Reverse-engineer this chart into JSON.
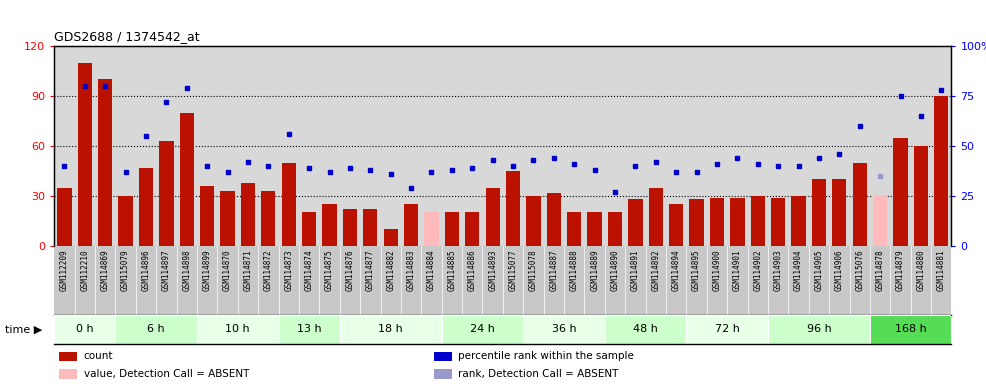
{
  "title": "GDS2688 / 1374542_at",
  "samples": [
    "GSM112209",
    "GSM112210",
    "GSM114869",
    "GSM115079",
    "GSM114896",
    "GSM114897",
    "GSM114898",
    "GSM114899",
    "GSM114870",
    "GSM114871",
    "GSM114872",
    "GSM114873",
    "GSM114874",
    "GSM114875",
    "GSM114876",
    "GSM114877",
    "GSM114882",
    "GSM114883",
    "GSM114884",
    "GSM114885",
    "GSM114886",
    "GSM114893",
    "GSM115077",
    "GSM115078",
    "GSM114887",
    "GSM114888",
    "GSM114889",
    "GSM114890",
    "GSM114891",
    "GSM114892",
    "GSM114894",
    "GSM114895",
    "GSM114900",
    "GSM114901",
    "GSM114902",
    "GSM114903",
    "GSM114904",
    "GSM114905",
    "GSM114906",
    "GSM115076",
    "GSM114878",
    "GSM114879",
    "GSM114880",
    "GSM114881"
  ],
  "red_values": [
    35,
    110,
    100,
    30,
    47,
    63,
    80,
    36,
    33,
    38,
    33,
    50,
    20,
    25,
    22,
    22,
    10,
    25,
    20,
    20,
    20,
    35,
    45,
    30,
    32,
    20,
    20,
    20,
    28,
    35,
    25,
    28,
    29,
    29,
    30,
    29,
    30,
    40,
    40,
    50,
    30,
    65,
    60,
    90
  ],
  "blue_values": [
    40,
    80,
    80,
    37,
    55,
    72,
    79,
    40,
    37,
    42,
    40,
    56,
    39,
    37,
    39,
    38,
    36,
    29,
    37,
    38,
    39,
    43,
    40,
    43,
    44,
    41,
    38,
    27,
    40,
    42,
    37,
    37,
    41,
    44,
    41,
    40,
    40,
    44,
    46,
    60,
    35,
    75,
    65,
    78
  ],
  "absent_red": [
    false,
    false,
    false,
    false,
    false,
    false,
    false,
    false,
    false,
    false,
    false,
    false,
    false,
    false,
    false,
    false,
    false,
    false,
    true,
    false,
    false,
    false,
    false,
    false,
    false,
    false,
    false,
    false,
    false,
    false,
    false,
    false,
    false,
    false,
    false,
    false,
    false,
    false,
    false,
    false,
    true,
    false,
    false,
    false
  ],
  "absent_blue": [
    false,
    false,
    false,
    false,
    false,
    false,
    false,
    false,
    false,
    false,
    false,
    false,
    false,
    false,
    false,
    false,
    false,
    false,
    false,
    false,
    false,
    false,
    false,
    false,
    false,
    false,
    false,
    false,
    false,
    false,
    false,
    false,
    false,
    false,
    false,
    false,
    false,
    false,
    false,
    false,
    true,
    false,
    false,
    false
  ],
  "time_groups": [
    {
      "label": "0 h",
      "start": 0,
      "end": 2,
      "color": "#E8FFE8"
    },
    {
      "label": "6 h",
      "start": 3,
      "end": 6,
      "color": "#CCFFCC"
    },
    {
      "label": "10 h",
      "start": 7,
      "end": 10,
      "color": "#E8FFE8"
    },
    {
      "label": "13 h",
      "start": 11,
      "end": 13,
      "color": "#CCFFCC"
    },
    {
      "label": "18 h",
      "start": 14,
      "end": 18,
      "color": "#E8FFE8"
    },
    {
      "label": "24 h",
      "start": 19,
      "end": 22,
      "color": "#CCFFCC"
    },
    {
      "label": "36 h",
      "start": 23,
      "end": 26,
      "color": "#E8FFE8"
    },
    {
      "label": "48 h",
      "start": 27,
      "end": 30,
      "color": "#CCFFCC"
    },
    {
      "label": "72 h",
      "start": 31,
      "end": 34,
      "color": "#E8FFE8"
    },
    {
      "label": "96 h",
      "start": 35,
      "end": 39,
      "color": "#CCFFCC"
    },
    {
      "label": "168 h",
      "start": 40,
      "end": 43,
      "color": "#55DD55"
    }
  ],
  "ylim_left": [
    0,
    120
  ],
  "ylim_right": [
    0,
    100
  ],
  "yticks_left": [
    0,
    30,
    60,
    90,
    120
  ],
  "yticks_right": [
    0,
    25,
    50,
    75,
    100
  ],
  "bar_color": "#BB1100",
  "bar_color_absent": "#FFBBBB",
  "dot_color": "#0000CC",
  "dot_color_absent": "#9999CC",
  "bg_color_plot": "#D8D8D8",
  "xtick_bg": "#C8C8C8",
  "time_bar_bg": "#AADDAA"
}
